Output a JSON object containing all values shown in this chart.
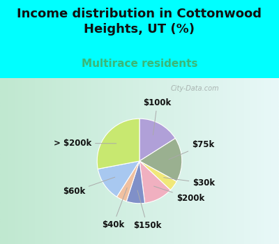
{
  "title": "Income distribution in Cottonwood\nHeights, UT (%)",
  "subtitle": "Multirace residents",
  "title_color": "#111111",
  "background_color": "#00ffff",
  "chart_bg": "#d8ede0",
  "watermark": "City-Data.com",
  "slices": [
    {
      "label": "$100k",
      "value": 16,
      "color": "#b0a0d8"
    },
    {
      "label": "$75k",
      "value": 17,
      "color": "#9ab090"
    },
    {
      "label": "$30k",
      "value": 4,
      "color": "#f0e878"
    },
    {
      "label": "$200k",
      "value": 11,
      "color": "#f0b0c0"
    },
    {
      "label": "$150k",
      "value": 7,
      "color": "#8090c8"
    },
    {
      "label": "$40k",
      "value": 4,
      "color": "#f0c0a0"
    },
    {
      "label": "$60k",
      "value": 13,
      "color": "#a8c8f0"
    },
    {
      "label": "> $200k",
      "value": 28,
      "color": "#c8e870"
    }
  ],
  "label_fontsize": 8.5,
  "label_color": "#111111",
  "title_fontsize": 13,
  "subtitle_fontsize": 11,
  "subtitle_color": "#3ab878"
}
